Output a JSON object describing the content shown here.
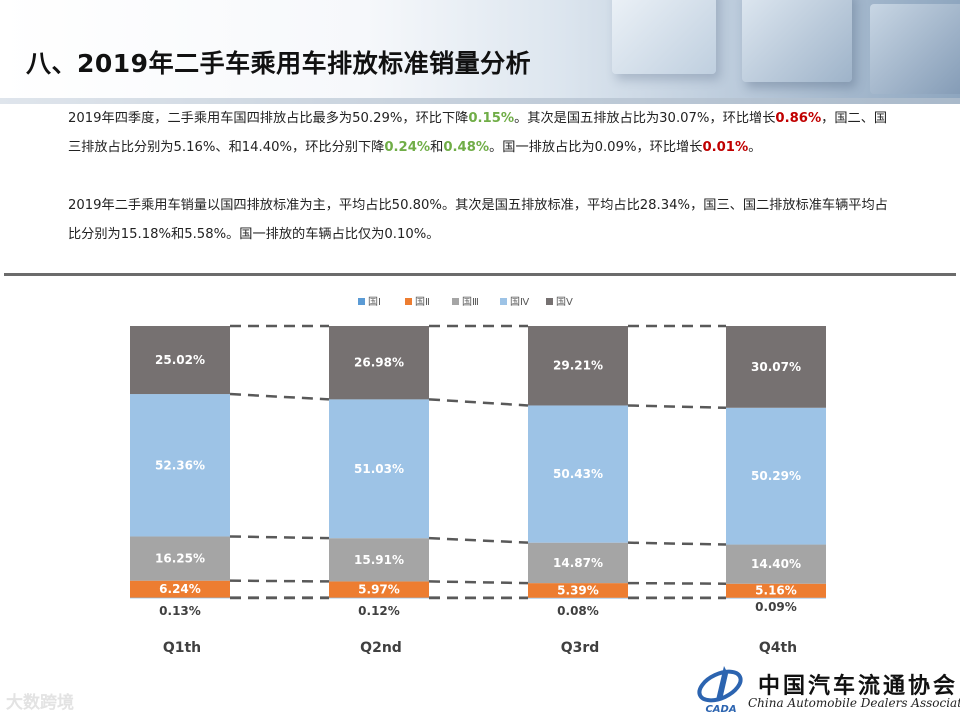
{
  "title": "八、2019年二手车乘用车排放标准销量分析",
  "paragraph1": {
    "p1": "2019年四季度，二手乘用车国四排放占比最多为50.29%，环比下降",
    "h1": "0.15%",
    "p2": "。其次是国五排放占比为30.07%，环比增长",
    "h2": "0.86%",
    "p3": "，国二、国三排放占比分别为5.16%、和14.40%，环比分别下降",
    "h3": "0.24%",
    "p4": "和",
    "h4": "0.48%",
    "p5": "。国一排放占比为0.09%，环比增长",
    "h5": "0.01%",
    "p6": "。"
  },
  "paragraph2": "2019年二手乘用车销量以国四排放标准为主，平均占比50.80%。其次是国五排放标准，平均占比28.34%，国三、国二排放标准车辆平均占比分别为15.18%和5.58%。国一排放的车辆占比仅为0.10%。",
  "chart_data": {
    "type": "bar",
    "stacked": true,
    "percent_stacked": true,
    "categories": [
      "Q1th",
      "Q2nd",
      "Q3rd",
      "Q4th"
    ],
    "series": [
      {
        "name": "国Ⅰ",
        "color": "#5b9bd5",
        "values": [
          0.13,
          0.12,
          0.08,
          0.09
        ],
        "labels": [
          "0.13%",
          "0.12%",
          "0.08%",
          "0.09%"
        ]
      },
      {
        "name": "国Ⅱ",
        "color": "#ed7d31",
        "values": [
          6.24,
          5.97,
          5.39,
          5.16
        ],
        "labels": [
          "6.24%",
          "5.97%",
          "5.39%",
          "5.16%"
        ]
      },
      {
        "name": "国Ⅲ",
        "color": "#a5a5a5",
        "values": [
          16.25,
          15.91,
          14.87,
          14.4
        ],
        "labels": [
          "16.25%",
          "15.91%",
          "14.87%",
          "14.40%"
        ]
      },
      {
        "name": "国Ⅳ",
        "color": "#9dc3e6",
        "values": [
          52.36,
          51.03,
          50.43,
          50.29
        ],
        "labels": [
          "52.36%",
          "51.03%",
          "50.43%",
          "50.29%"
        ]
      },
      {
        "name": "国Ⅴ",
        "color": "#767171",
        "values": [
          25.02,
          26.98,
          29.21,
          30.07
        ],
        "labels": [
          "25.02%",
          "26.98%",
          "29.21%",
          "30.07%"
        ]
      }
    ],
    "legend_position": "top",
    "title": "",
    "xlabel": "",
    "ylabel": ""
  },
  "logo": {
    "name": "中国汽车流通协会",
    "subtitle": "China Automobile Dealers Association",
    "emblem_text": "CADA"
  },
  "watermark": "大数跨境"
}
